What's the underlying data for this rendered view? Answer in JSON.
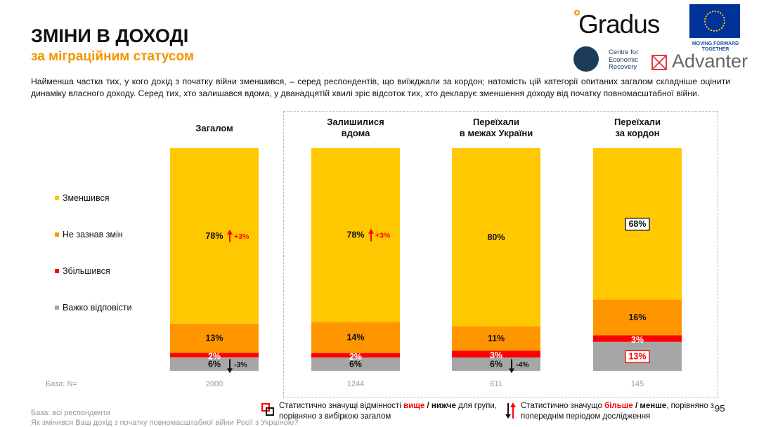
{
  "header": {
    "title": "ЗМІНИ В ДОХОДІ",
    "subtitle": "за міграційним статусом",
    "description": "Найменша частка тих, у кого дохід з початку війни зменшився, – серед респондентів, що виїжджали за кордон; натомість цій категорії опитаних загалом складніше оцінити динаміку власного доходу. Серед тих, хто залишався вдома, у дванадцятій хвилі зріс відсоток тих, хто декларує зменшення доходу від початку повномасштабної війни."
  },
  "logos": {
    "gradus": "Gradus",
    "eu": "MOVING FORWARD TOGETHER",
    "cer": [
      "Centre for",
      "Economic",
      "Recovery"
    ],
    "advanter": "Advanter"
  },
  "chart_data": {
    "type": "bar",
    "stacked": true,
    "orientation": "vertical",
    "categories": [
      "Загалом",
      "Залишилися вдома",
      "Переїхали в межах України",
      "Переїхали за кордон"
    ],
    "series": [
      {
        "name": "Зменшився",
        "color": "#ffc800",
        "values": [
          78,
          78,
          80,
          68
        ]
      },
      {
        "name": "Не зазнав змін",
        "color": "#ff9600",
        "values": [
          13,
          14,
          11,
          16
        ]
      },
      {
        "name": "Збільшився",
        "color": "#ff0000",
        "values": [
          2,
          2,
          3,
          3
        ]
      },
      {
        "name": "Важко відповісти",
        "color": "#a6a6a6",
        "values": [
          6,
          6,
          6,
          13
        ]
      }
    ],
    "annotations": [
      {
        "category": 0,
        "series": 0,
        "change": "+3%",
        "direction": "up"
      },
      {
        "category": 0,
        "series": 3,
        "change": "-3%",
        "direction": "down"
      },
      {
        "category": 1,
        "series": 0,
        "change": "+3%",
        "direction": "up"
      },
      {
        "category": 2,
        "series": 3,
        "change": "-4%",
        "direction": "down"
      },
      {
        "category": 3,
        "series": 0,
        "boxed": "lower"
      },
      {
        "category": 3,
        "series": 3,
        "boxed": "higher"
      }
    ],
    "base_label": "База: N=",
    "base_n": [
      "2000",
      "1244",
      "611",
      "145"
    ],
    "legend_position": "left"
  },
  "col_heads": [
    [
      "Загалом"
    ],
    [
      "Залишилися",
      "вдома"
    ],
    [
      "Переїхали",
      "в межах України"
    ],
    [
      "Переїхали",
      "за кордон"
    ]
  ],
  "footer": {
    "base": "База: всі респонденти",
    "question": "Як змінився Ваш дохід з початку повномасштабної війни Росії з Україною?",
    "note1a": "Статистично значущі відмінності ",
    "note1_hi": "вище",
    "note1_sep": " / ",
    "note1_lo": "нижче",
    "note1b": " для групи,",
    "note1c": "порівняно з вибіркою загалом",
    "note2a": "Статистично значущо ",
    "note2_hi": "більше",
    "note2_sep": " / ",
    "note2_lo": "менше",
    "note2b": ", порівняно з",
    "note2c": "попереднім періодом дослідження",
    "page": "95"
  }
}
